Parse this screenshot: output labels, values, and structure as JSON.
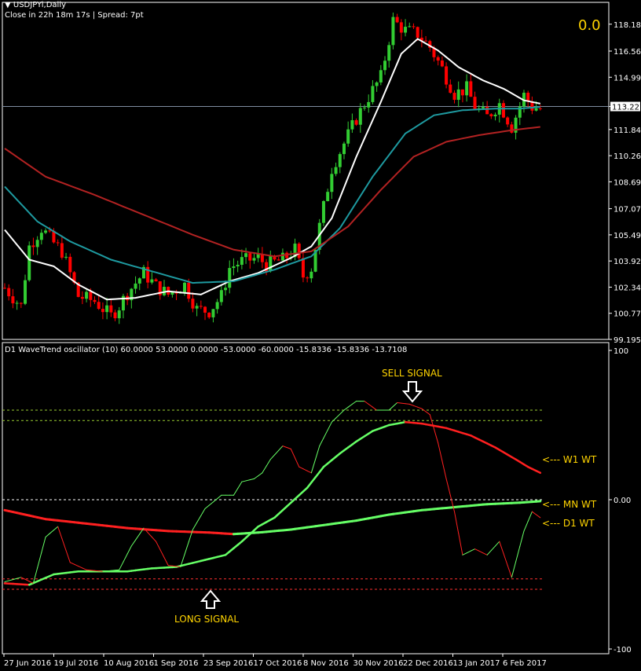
{
  "header": {
    "symbol": "USDJPYi,Daily",
    "close_info": "Close in 22h 18m 17s | Spread: 7pt",
    "big_value": "0.0"
  },
  "subwindow": {
    "title": "D1 WaveTrend oscillator (10) 60.0000 53.0000 0.0000 -53.0000 -60.0000 -15.8336 -15.8336 -13.7108"
  },
  "annotations": {
    "sell_signal": "SELL SIGNAL",
    "long_signal": "LONG SIGNAL",
    "w1_label": "<--- W1 WT",
    "mn_label": "<--- MN WT",
    "d1_label": "<--- D1 WT"
  },
  "colors": {
    "background": "#000000",
    "bull_candle": "#32cd32",
    "bear_candle": "#ff0000",
    "ma_fast": "#ffffff",
    "ma_mid": "#1e9aa0",
    "ma_slow": "#b22222",
    "osc_up": "#66ff66",
    "osc_down": "#ff2020",
    "text_yellow": "#ffd400",
    "grid": "#ffffff"
  },
  "chart_data": [
    {
      "type": "candlestick",
      "title": "USDJPYi,Daily",
      "y_ticks": [
        "118.185",
        "116.565",
        "114.990",
        "113.227",
        "111.840",
        "110.265",
        "108.690",
        "107.070",
        "105.495",
        "103.920",
        "102.345",
        "100.770",
        "99.195"
      ],
      "ylim": [
        99.195,
        119.5
      ],
      "current_price": 113.227,
      "x_ticks": [
        "27 Jun 2016",
        "19 Jul 2016",
        "10 Aug 2016",
        "1 Sep 2016",
        "23 Sep 2016",
        "17 Oct 2016",
        "8 Nov 2016",
        "30 Nov 2016",
        "22 Dec 2016",
        "13 Jan 2017",
        "6 Feb 2017"
      ],
      "close_series": [
        [
          0,
          102.3
        ],
        [
          4,
          101.2
        ],
        [
          6,
          104.8
        ],
        [
          9,
          105.9
        ],
        [
          12,
          105.0
        ],
        [
          14,
          104.5
        ],
        [
          18,
          101.8
        ],
        [
          22,
          101.5
        ],
        [
          26,
          100.6
        ],
        [
          28,
          101.2
        ],
        [
          30,
          102.0
        ],
        [
          34,
          103.2
        ],
        [
          37,
          102.4
        ],
        [
          40,
          101.9
        ],
        [
          44,
          102.5
        ],
        [
          47,
          101.0
        ],
        [
          50,
          100.9
        ],
        [
          53,
          101.8
        ],
        [
          55,
          103.5
        ],
        [
          58,
          103.9
        ],
        [
          62,
          104.1
        ],
        [
          64,
          103.7
        ],
        [
          68,
          104.0
        ],
        [
          71,
          104.6
        ],
        [
          73,
          103.0
        ],
        [
          75,
          103.5
        ],
        [
          77,
          106.0
        ],
        [
          80,
          109.5
        ],
        [
          83,
          111.0
        ],
        [
          86,
          112.5
        ],
        [
          89,
          113.8
        ],
        [
          92,
          115.0
        ],
        [
          95,
          118.4
        ],
        [
          98,
          117.8
        ],
        [
          101,
          117.6
        ],
        [
          104,
          116.8
        ],
        [
          107,
          115.5
        ],
        [
          110,
          114.0
        ],
        [
          113,
          114.3
        ],
        [
          115,
          113.2
        ],
        [
          118,
          112.6
        ],
        [
          121,
          113.4
        ],
        [
          124,
          112.0
        ],
        [
          127,
          113.9
        ],
        [
          129,
          113.2
        ],
        [
          131,
          113.1
        ]
      ],
      "series": [
        {
          "name": "MA fast",
          "values": [
            [
              0,
              105.8
            ],
            [
              6,
              104.0
            ],
            [
              12,
              103.6
            ],
            [
              18,
              102.5
            ],
            [
              25,
              101.6
            ],
            [
              32,
              101.7
            ],
            [
              40,
              102.1
            ],
            [
              48,
              101.9
            ],
            [
              55,
              102.7
            ],
            [
              62,
              103.2
            ],
            [
              70,
              104.1
            ],
            [
              75,
              104.8
            ],
            [
              80,
              106.5
            ],
            [
              86,
              110.2
            ],
            [
              92,
              113.5
            ],
            [
              97,
              116.4
            ],
            [
              101,
              117.3
            ],
            [
              106,
              116.6
            ],
            [
              111,
              115.6
            ],
            [
              117,
              114.8
            ],
            [
              122,
              114.3
            ],
            [
              127,
              113.6
            ],
            [
              131,
              113.4
            ]
          ]
        },
        {
          "name": "MA mid",
          "values": [
            [
              0,
              108.4
            ],
            [
              8,
              106.3
            ],
            [
              16,
              105.1
            ],
            [
              26,
              104.0
            ],
            [
              36,
              103.3
            ],
            [
              46,
              102.6
            ],
            [
              56,
              102.7
            ],
            [
              66,
              103.4
            ],
            [
              75,
              104.2
            ],
            [
              82,
              105.9
            ],
            [
              90,
              109.0
            ],
            [
              98,
              111.6
            ],
            [
              105,
              112.7
            ],
            [
              112,
              113.0
            ],
            [
              120,
              113.1
            ],
            [
              126,
              113.1
            ],
            [
              131,
              113.2
            ]
          ]
        },
        {
          "name": "MA slow",
          "values": [
            [
              0,
              110.7
            ],
            [
              10,
              109.0
            ],
            [
              22,
              107.9
            ],
            [
              34,
              106.7
            ],
            [
              46,
              105.5
            ],
            [
              56,
              104.6
            ],
            [
              66,
              104.2
            ],
            [
              75,
              104.5
            ],
            [
              84,
              106.0
            ],
            [
              92,
              108.2
            ],
            [
              100,
              110.2
            ],
            [
              108,
              111.1
            ],
            [
              116,
              111.5
            ],
            [
              124,
              111.8
            ],
            [
              131,
              112.0
            ]
          ]
        }
      ]
    },
    {
      "type": "line",
      "title": "D1 WaveTrend oscillator (10)",
      "ylim": [
        -100,
        100
      ],
      "y_ticks": [
        "100",
        "0.00",
        "-100"
      ],
      "levels": [
        60,
        53,
        0,
        -53,
        -60
      ],
      "series": [
        {
          "name": "D1 WT",
          "values": [
            [
              0,
              -55
            ],
            [
              4,
              -52
            ],
            [
              7,
              -56
            ],
            [
              10,
              -25
            ],
            [
              13,
              -18
            ],
            [
              16,
              -42
            ],
            [
              20,
              -47
            ],
            [
              24,
              -48
            ],
            [
              28,
              -47
            ],
            [
              31,
              -31
            ],
            [
              34,
              -19
            ],
            [
              37,
              -28
            ],
            [
              40,
              -44
            ],
            [
              43,
              -45
            ],
            [
              46,
              -20
            ],
            [
              49,
              -6
            ],
            [
              53,
              3
            ],
            [
              56,
              3
            ],
            [
              58,
              12
            ],
            [
              61,
              14
            ],
            [
              63,
              18
            ],
            [
              65,
              27
            ],
            [
              68,
              36
            ],
            [
              70,
              34
            ],
            [
              72,
              22
            ],
            [
              75,
              18
            ],
            [
              77,
              36
            ],
            [
              80,
              52
            ],
            [
              83,
              60
            ],
            [
              86,
              66
            ],
            [
              88,
              66
            ],
            [
              91,
              60
            ],
            [
              94,
              60
            ],
            [
              96,
              65
            ],
            [
              99,
              64
            ],
            [
              102,
              61
            ],
            [
              104,
              57
            ],
            [
              106,
              38
            ],
            [
              108,
              14
            ],
            [
              110,
              -8
            ],
            [
              112,
              -37
            ],
            [
              115,
              -33
            ],
            [
              118,
              -37
            ],
            [
              121,
              -28
            ],
            [
              124,
              -52
            ],
            [
              127,
              -21
            ],
            [
              129,
              -8
            ],
            [
              131,
              -12
            ]
          ]
        },
        {
          "name": "W1 WT",
          "values": [
            [
              0,
              -56
            ],
            [
              6,
              -57
            ],
            [
              12,
              -50
            ],
            [
              18,
              -48
            ],
            [
              24,
              -48
            ],
            [
              30,
              -48
            ],
            [
              36,
              -46
            ],
            [
              42,
              -45
            ],
            [
              48,
              -41
            ],
            [
              54,
              -37
            ],
            [
              58,
              -28
            ],
            [
              62,
              -18
            ],
            [
              66,
              -12
            ],
            [
              70,
              -2
            ],
            [
              74,
              8
            ],
            [
              78,
              22
            ],
            [
              82,
              31
            ],
            [
              86,
              39
            ],
            [
              90,
              46
            ],
            [
              94,
              50
            ],
            [
              98,
              52
            ],
            [
              102,
              51
            ],
            [
              108,
              48
            ],
            [
              114,
              43
            ],
            [
              120,
              35
            ],
            [
              125,
              27
            ],
            [
              128,
              22
            ],
            [
              131,
              18
            ]
          ]
        },
        {
          "name": "MN WT",
          "values": [
            [
              0,
              -7
            ],
            [
              10,
              -13
            ],
            [
              20,
              -16
            ],
            [
              30,
              -19
            ],
            [
              40,
              -21
            ],
            [
              50,
              -22
            ],
            [
              56,
              -23
            ],
            [
              62,
              -22
            ],
            [
              70,
              -20
            ],
            [
              78,
              -17
            ],
            [
              86,
              -14
            ],
            [
              94,
              -10
            ],
            [
              102,
              -7
            ],
            [
              110,
              -5
            ],
            [
              118,
              -3
            ],
            [
              126,
              -2
            ],
            [
              131,
              -1
            ]
          ]
        }
      ]
    }
  ]
}
